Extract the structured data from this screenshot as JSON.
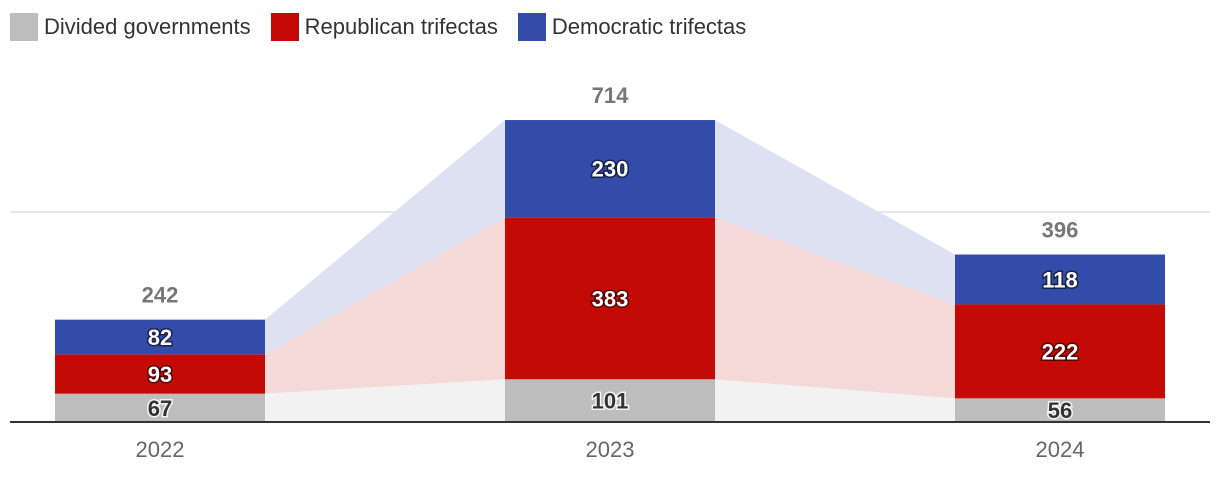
{
  "chart_data": {
    "type": "bar",
    "stacked": true,
    "categories": [
      "2022",
      "2023",
      "2024"
    ],
    "series": [
      {
        "name": "Divided governments",
        "values": [
          67,
          101,
          56
        ],
        "color": "#bdbdbd",
        "label_style": "dark"
      },
      {
        "name": "Republican trifectas",
        "values": [
          93,
          383,
          222
        ],
        "color": "#c30a05",
        "label_style": "light"
      },
      {
        "name": "Democratic trifectas",
        "values": [
          82,
          230,
          118
        ],
        "color": "#334ca9",
        "label_style": "light"
      }
    ],
    "totals": [
      242,
      714,
      396
    ],
    "band_colors": [
      "#f2f2f2",
      "#f5d8d8",
      "#dde1f2"
    ],
    "ylim": [
      0,
      750
    ],
    "legend_position": "top-left",
    "grid": true
  }
}
